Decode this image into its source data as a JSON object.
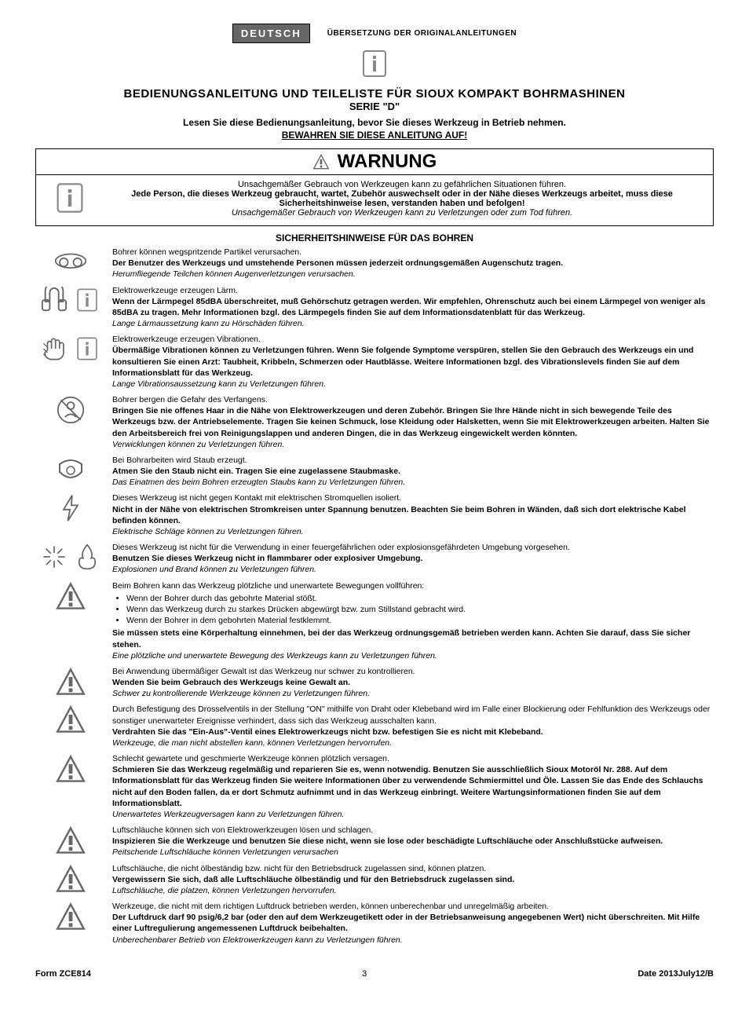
{
  "header": {
    "language_badge": "DEUTSCH",
    "translation_note": "ÜBERSETZUNG DER ORIGINALANLEITUNGEN"
  },
  "title": {
    "main": "BEDIENUNGSANLEITUNG UND TEILELISTE FÜR SIOUX KOMPAKT BOHRMASHINEN",
    "series": "SERIE \"D\"",
    "subtitle": "Lesen Sie diese Bedienungsanleitung, bevor Sie dieses Werkzeug in Betrieb nehmen.",
    "keep": "BEWAHREN SIE DIESE ANLEITUNG AUF!"
  },
  "warning": {
    "heading": "WARNUNG",
    "line1": "Unsachgemäßer Gebrauch von Werkzeugen kann zu gefährlichen Situationen führen.",
    "line2": "Jede Person, die dieses Werkzeug gebraucht, wartet, Zubehör auswechselt oder in der Nähe dieses Werkzeugs arbeitet, muss diese Sicherheitshinweise lesen, verstanden haben und befolgen!",
    "line3": "Unsachgemäßer Gebrauch von Werkzeugen kann zu Verletzungen oder zum Tod führen."
  },
  "safety_section_title": "SICHERHEITSHINWEISE FÜR DAS BOHREN",
  "hazards": [
    {
      "intro": "Bohrer können wegspritzende Partikel verursachen.",
      "rule": "Der Benutzer des Werkzeugs und umstehende Personen müssen jederzeit ordnungsgemäßen Augenschutz tragen.",
      "consequence": "Herumfliegende Teilchen können Augenverletzungen verursachen."
    },
    {
      "intro": "Elektrowerkzeuge erzeugen Lärm.",
      "rule": "Wenn der Lärmpegel 85dBA überschreitet, muß Gehörschutz getragen werden. Wir empfehlen, Ohrenschutz auch bei einem Lärmpegel von weniger als 85dBA zu tragen. Mehr Informationen bzgl. des Lärmpegels finden Sie auf dem Informationsdatenblatt für das Werkzeug.",
      "consequence": "Lange Lärmaussetzung kann zu Hörschäden führen."
    },
    {
      "intro": "Elektrowerkzeuge erzeugen Vibrationen.",
      "rule": "Übermäßige Vibrationen können zu Verletzungen führen. Wenn Sie folgende Symptome verspüren, stellen Sie den Gebrauch des Werkzeugs ein und konsultieren Sie einen Arzt: Taubheit, Kribbeln, Schmerzen oder Hautblässe. Weitere Informationen bzgl. des Vibrationslevels finden Sie auf dem Informationsblatt für das Werkzeug.",
      "consequence": "Lange Vibrationsaussetzung kann zu Verletzungen führen."
    },
    {
      "intro": "Bohrer bergen die Gefahr des Verfangens.",
      "rule": "Bringen Sie nie offenes Haar in die Nähe von Elektrowerkzeugen und deren Zubehör. Bringen Sie Ihre Hände nicht in sich bewegende Teile des Werkzeugs bzw. der Antriebselemente. Tragen Sie keinen Schmuck, lose Kleidung oder Halsketten, wenn Sie mit Elektrowerkzeugen arbeiten. Halten Sie den Arbeitsbereich frei von Reinigungslappen und anderen Dingen, die in das Werkzeug eingewickelt werden könnten.",
      "consequence": "Verwicklungen können zu Verletzungen führen."
    },
    {
      "intro": "Bei Bohrarbeiten wird Staub erzeugt.",
      "rule": "Atmen Sie den Staub nicht ein. Tragen Sie eine zugelassene Staubmaske.",
      "consequence": "Das Einatmen des beim Bohren erzeugten Staubs kann zu Verletzungen führen."
    },
    {
      "intro": "Dieses Werkzeug ist nicht gegen Kontakt mit elektrischen Stromquellen isoliert.",
      "rule": "Nicht in der Nähe von elektrischen Stromkreisen unter Spannung benutzen. Beachten Sie beim Bohren in Wänden, daß sich dort elektrische Kabel befinden können.",
      "consequence": "Elektrische Schläge können zu Verletzungen führen."
    },
    {
      "intro": "Dieses Werkzeug ist nicht für die Verwendung in einer feuergefährlichen oder explosionsgefährdeten Umgebung vorgesehen.",
      "rule": "Benutzen Sie dieses Werkzeug nicht in flammbarer oder explosiver Umgebung.",
      "consequence": "Explosionen und Brand können zu Verletzungen führen."
    },
    {
      "intro": "Beim Bohren kann das Werkzeug plötzliche und unerwartete Bewegungen vollführen:",
      "bullets": [
        "Wenn der Bohrer durch das gebohrte Material stößt.",
        "Wenn das Werkzeug durch zu starkes Drücken abgewürgt bzw. zum Stillstand gebracht wird.",
        "Wenn der Bohrer in dem gebohrten Material festklemmt."
      ],
      "rule": "Sie müssen stets eine Körperhaltung einnehmen, bei der das Werkzeug ordnungsgemäß betrieben werden kann. Achten Sie darauf, dass Sie sicher stehen.",
      "consequence": "Eine plötzliche und unerwartete Bewegung des Werkzeugs kann zu Verletzungen führen."
    },
    {
      "intro": "Bei Anwendung übermäßiger Gewalt ist das Werkzeug nur schwer zu kontrollieren.",
      "rule": "Wenden Sie beim Gebrauch des Werkzeugs keine Gewalt an.",
      "consequence": "Schwer zu kontrollierende Werkzeuge können zu Verletzungen führen."
    },
    {
      "intro": "Durch Befestigung des Drosselventils in der Stellung \"ON\" mithilfe von Draht oder Klebeband wird im Falle einer Blockierung oder Fehlfunktion des Werkzeugs oder sonstiger unerwarteter Ereignisse verhindert, dass sich das Werkzeug ausschalten kann.",
      "rule": "Verdrahten Sie das \"Ein-Aus\"-Ventil eines Elektrowerkzeugs nicht bzw. befestigen Sie es nicht mit Klebeband.",
      "consequence": "Werkzeuge, die man nicht abstellen kann, können Verletzungen hervorrufen."
    },
    {
      "intro": "Schlecht gewartete und geschmierte Werkzeuge können plötzlich versagen.",
      "rule": "Schmieren Sie das Werkzeug regelmäßig und reparieren Sie es, wenn notwendig. Benutzen Sie ausschließlich Sioux Motoröl Nr. 288. Auf dem Informationsblatt für das Werkzeug finden Sie weitere Informationen über zu verwendende Schmiermittel und Öle. Lassen Sie das Ende des Schlauchs nicht auf den Boden fallen, da er dort Schmutz aufnimmt und in das Werkzeug einbringt. Weitere Wartungsinformationen finden Sie auf dem Informationsblatt.",
      "consequence": "Unerwartetes Werkzeugversagen kann zu Verletzungen führen."
    },
    {
      "intro": "Luftschläuche können sich von Elektrowerkzeugen lösen und schlagen.",
      "rule": "Inspizieren Sie die Werkzeuge und benutzen Sie diese nicht, wenn sie lose oder beschädigte Luftschläuche oder Anschlußstücke aufweisen.",
      "consequence": "Peitschende Luftschläuche können Verletzungen verursachen"
    },
    {
      "intro": "Luftschläuche, die nicht ölbeständig bzw. nicht für den Betriebsdruck zugelassen sind, können platzen.",
      "rule": "Vergewissern Sie sich, daß alle Luftschläuche ölbeständig und für den Betriebsdruck zugelassen sind.",
      "consequence": "Luftschläuche, die platzen, können Verletzungen hervorrufen."
    },
    {
      "intro": "Werkzeuge, die nicht mit dem richtigen Luftdruck betrieben werden, können unberechenbar und unregelmäßig arbeiten.",
      "rule": "Der Luftdruck darf 90 psig/6,2 bar (oder den auf dem Werkzeugetikett oder in der Betriebsanweisung angegebenen Wert) nicht überschreiten. Mit Hilfe einer Luftregulierung angemessenen Luftdruck beibehalten.",
      "consequence": "Unberechenbarer Betrieb von Elektrowerkzeugen kann zu Verletzungen führen."
    }
  ],
  "footer": {
    "form": "Form ZCE814",
    "page": "3",
    "date": "Date 2013July12/B"
  },
  "colors": {
    "text": "#000000",
    "background": "#ffffff",
    "badge_bg": "#666666",
    "badge_text": "#ffffff",
    "icon_stroke": "#444444"
  }
}
